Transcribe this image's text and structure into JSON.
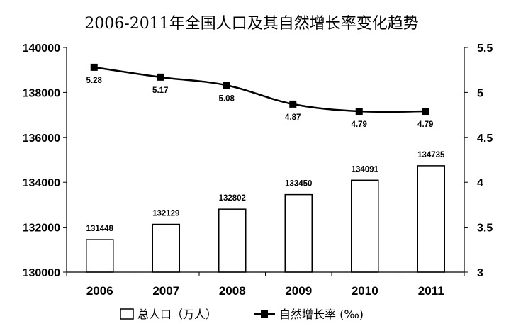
{
  "chart_data": {
    "type": "bar+line",
    "title": "2006-2011年全国人口及其自然增长率变化趋势",
    "categories": [
      "2006",
      "2007",
      "2008",
      "2009",
      "2010",
      "2011"
    ],
    "series": [
      {
        "name": "总人口（万人）",
        "type": "bar",
        "axis": "left",
        "values": [
          131448,
          132129,
          132802,
          133450,
          134091,
          134735
        ],
        "labels": [
          "131448",
          "132129",
          "132802",
          "133450",
          "134091",
          "134735"
        ]
      },
      {
        "name": "自然增长率 (‰)",
        "type": "line",
        "axis": "right",
        "values": [
          5.28,
          5.17,
          5.08,
          4.87,
          4.79,
          4.79
        ],
        "labels": [
          "5.28",
          "5.17",
          "5.08",
          "4.87",
          "4.79",
          "4.79"
        ]
      }
    ],
    "y_left": {
      "ylim": [
        130000,
        140000
      ],
      "ticks": [
        130000,
        132000,
        134000,
        136000,
        138000,
        140000
      ],
      "tick_labels": [
        "130000",
        "132000",
        "134000",
        "136000",
        "138000",
        "140000"
      ]
    },
    "y_right": {
      "ylim": [
        3,
        5.5
      ],
      "ticks": [
        3,
        3.5,
        4,
        4.5,
        5,
        5.5
      ],
      "tick_labels": [
        "3",
        "3.5",
        "4",
        "4.5",
        "5",
        "5.5"
      ]
    },
    "grid": false,
    "legend": "bottom",
    "colors": {
      "bar_fill": "#ffffff",
      "bar_stroke": "#000000",
      "line": "#000000",
      "marker": "#000000"
    }
  }
}
